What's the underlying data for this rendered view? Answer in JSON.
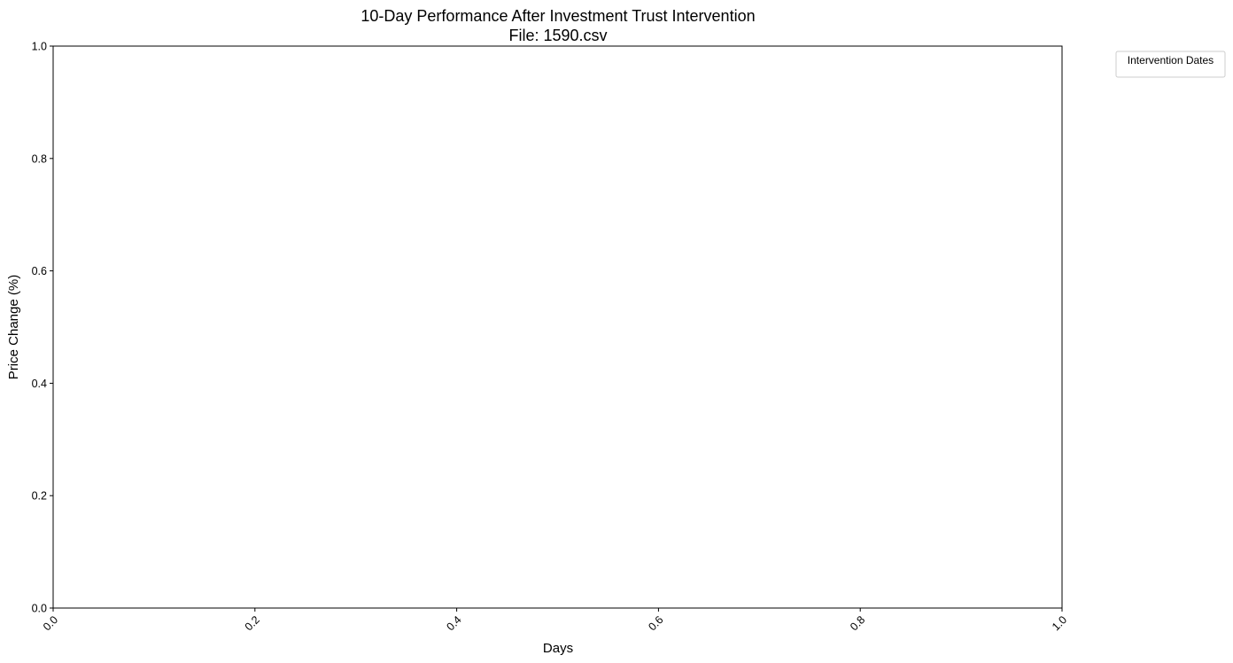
{
  "chart_data": {
    "type": "line",
    "title": "10-Day Performance After Investment Trust Intervention",
    "subtitle": "File: 1590.csv",
    "xlabel": "Days",
    "ylabel": "Price Change (%)",
    "xlim": [
      0,
      1
    ],
    "ylim": [
      0,
      1
    ],
    "x_ticks": [
      "0.0",
      "0.2",
      "0.4",
      "0.6",
      "0.8",
      "1.0"
    ],
    "y_ticks": [
      "0.0",
      "0.2",
      "0.4",
      "0.6",
      "0.8",
      "1.0"
    ],
    "x_tick_rotation": "45deg",
    "grid": false,
    "series": [],
    "legend": {
      "title": "Intervention Dates",
      "placement": "outside-top-right",
      "entries": []
    }
  }
}
